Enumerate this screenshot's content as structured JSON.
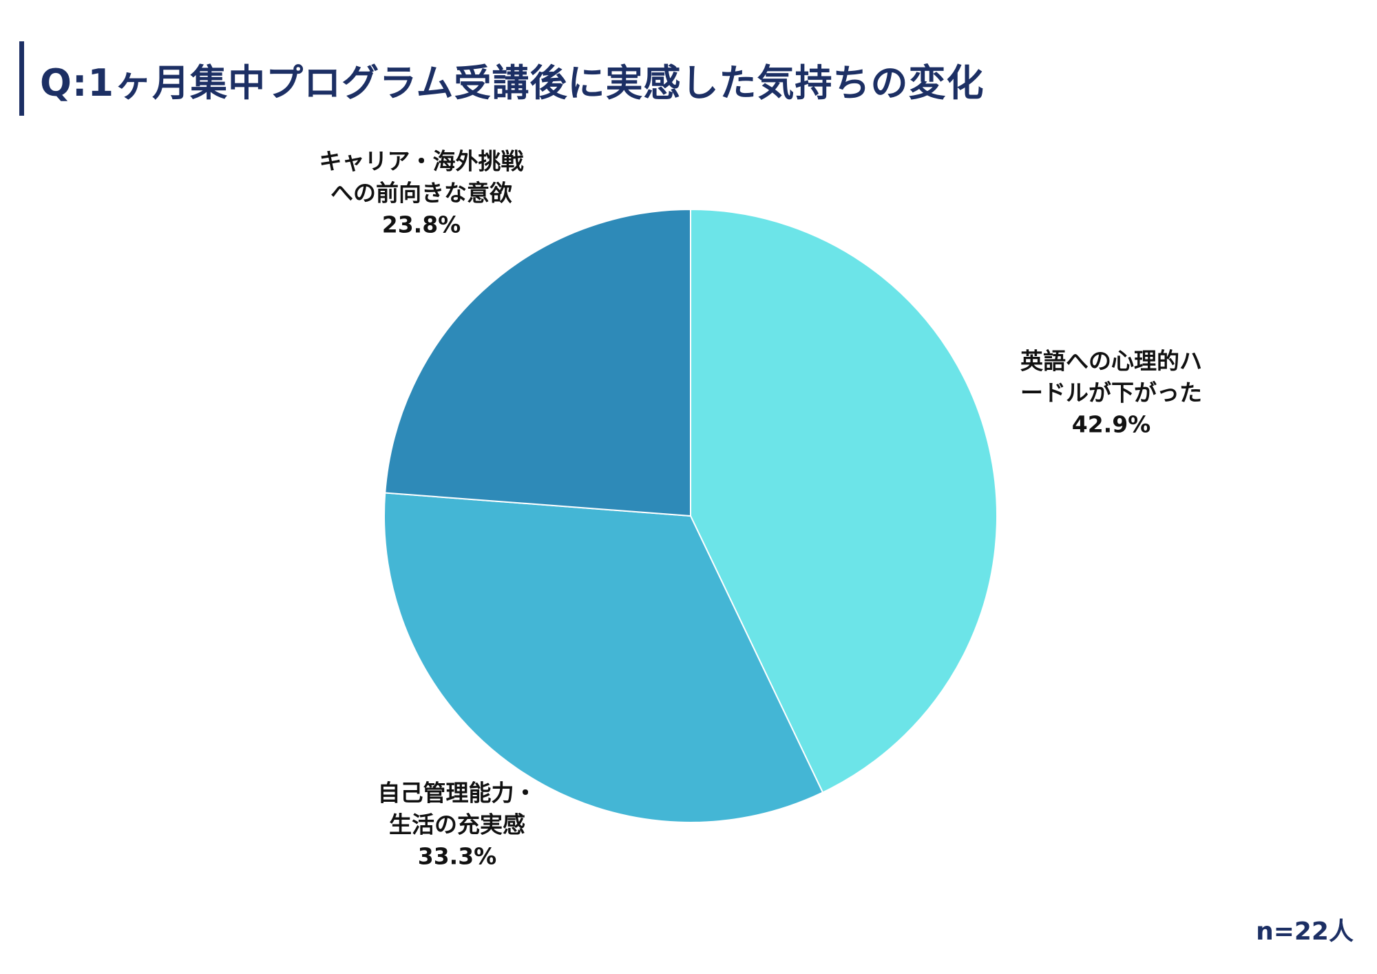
{
  "chart_data": {
    "type": "pie",
    "title": "Q:1ヶ月集中プログラム受講後に実感した気持ちの変化",
    "slices": [
      {
        "label_lines": [
          "英語への心理的ハ",
          "ードルが下がった"
        ],
        "value": 42.9,
        "value_label": "42.9%",
        "color": "#6ce4e8"
      },
      {
        "label_lines": [
          "自己管理能力・",
          "生活の充実感"
        ],
        "value": 33.3,
        "value_label": "33.3%",
        "color": "#44b6d5"
      },
      {
        "label_lines": [
          "キャリア・海外挑戦",
          "への前向きな意欲"
        ],
        "value": 23.8,
        "value_label": "23.8%",
        "color": "#2e8ab8"
      }
    ],
    "start_angle": "12 o'clock",
    "direction": "clockwise",
    "legend": "none",
    "note": "n=22人"
  },
  "colors": {
    "title": "#1c2f64",
    "label_text": "#111111"
  }
}
